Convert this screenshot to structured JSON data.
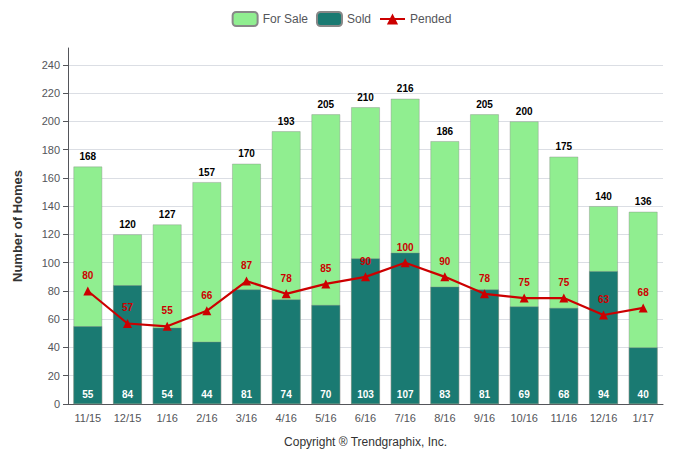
{
  "chart_data": {
    "type": "bar",
    "xlabel": "Copyright ® Trendgraphix, Inc.",
    "ylabel": "Number of Homes",
    "categories": [
      "11/15",
      "12/15",
      "1/16",
      "2/16",
      "3/16",
      "4/16",
      "5/16",
      "6/16",
      "7/16",
      "8/16",
      "9/16",
      "10/16",
      "11/16",
      "12/16",
      "1/17"
    ],
    "series": [
      {
        "name": "For Sale",
        "type": "bar",
        "color": "#90EE90",
        "values": [
          168,
          120,
          127,
          157,
          170,
          193,
          205,
          210,
          216,
          186,
          205,
          200,
          175,
          140,
          136
        ]
      },
      {
        "name": "Sold",
        "type": "bar",
        "color": "#1a7a72",
        "values": [
          55,
          84,
          54,
          44,
          81,
          74,
          70,
          103,
          107,
          83,
          81,
          69,
          68,
          94,
          40
        ]
      },
      {
        "name": "Pended",
        "type": "line",
        "color": "#cc0000",
        "marker": "triangle",
        "values": [
          80,
          57,
          55,
          66,
          87,
          78,
          85,
          90,
          100,
          90,
          78,
          75,
          75,
          63,
          68
        ]
      }
    ],
    "ylim": [
      0,
      252
    ],
    "yticks": [
      0,
      20,
      40,
      60,
      80,
      100,
      120,
      140,
      160,
      180,
      200,
      220,
      240
    ],
    "grid": true,
    "legend": "top",
    "data_labels": true
  }
}
